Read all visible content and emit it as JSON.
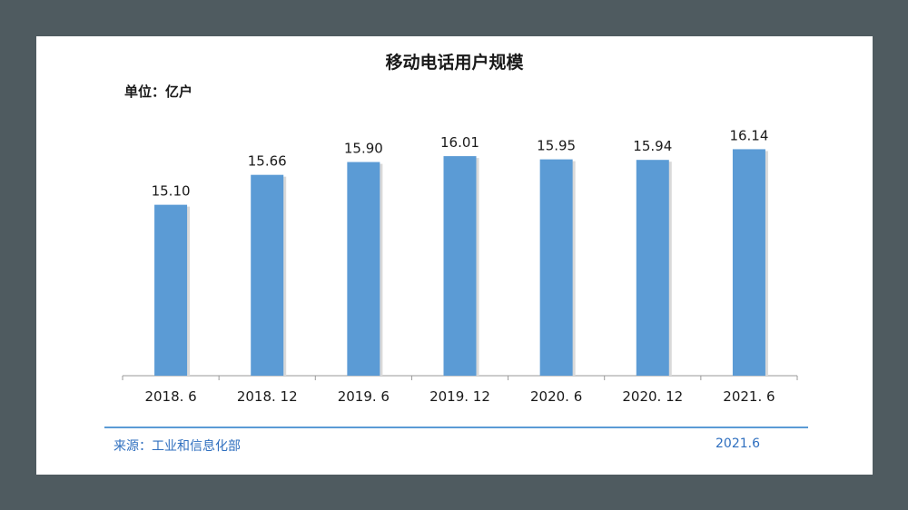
{
  "title": "移动电话用户规模",
  "unit_label": "单位：亿户",
  "source": "来源：工业和信息化部",
  "footer_date": "2021.6",
  "colors": {
    "bar": "#5b9bd5",
    "background": "#4f5b60",
    "accent": "#5b9bd5"
  },
  "chart_data": {
    "type": "bar",
    "title": "移动电话用户规模",
    "xlabel": "",
    "ylabel": "",
    "categories": [
      "2018. 6",
      "2018. 12",
      "2019. 6",
      "2019. 12",
      "2020. 6",
      "2020. 12",
      "2021. 6"
    ],
    "values": [
      15.1,
      15.66,
      15.9,
      16.01,
      15.95,
      15.94,
      16.14
    ],
    "data_labels": [
      "15.10",
      "15.66",
      "15.90",
      "16.01",
      "15.95",
      "15.94",
      "16.14"
    ],
    "grid": false,
    "legend": "none"
  }
}
